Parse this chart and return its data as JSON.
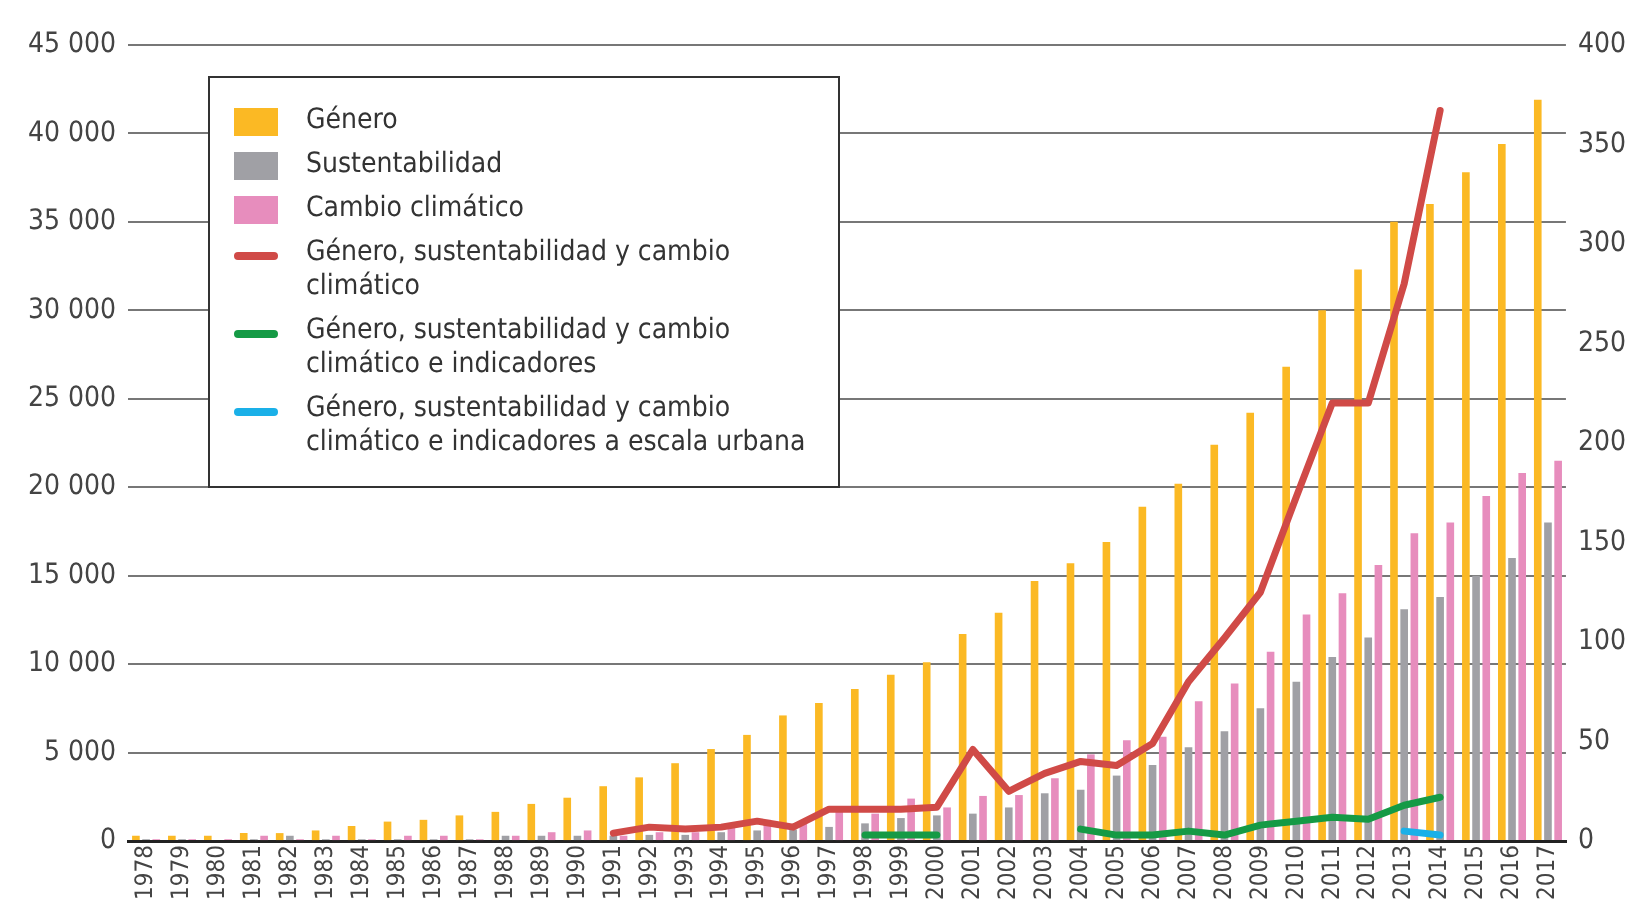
{
  "chart_data": {
    "type": "bar",
    "categories": [
      "1978",
      "1979",
      "1980",
      "1981",
      "1982",
      "1983",
      "1984",
      "1985",
      "1986",
      "1987",
      "1988",
      "1989",
      "1990",
      "1991",
      "1992",
      "1993",
      "1994",
      "1995",
      "1996",
      "1997",
      "1998",
      "1999",
      "2000",
      "2001",
      "2002",
      "2003",
      "2004",
      "2005",
      "2006",
      "2007",
      "2008",
      "2009",
      "2010",
      "2011",
      "2012",
      "2013",
      "2014",
      "2015",
      "2016",
      "2017"
    ],
    "series": [
      {
        "name": "Género",
        "color": "#fbb924",
        "values": [
          300,
          300,
          300,
          450,
          450,
          600,
          850,
          1100,
          1200,
          1450,
          1650,
          2100,
          2450,
          3100,
          3600,
          4400,
          5200,
          6000,
          7100,
          7800,
          8600,
          9400,
          10100,
          11700,
          12900,
          14700,
          15700,
          16900,
          18900,
          20200,
          22400,
          24200,
          26800,
          30000,
          32300,
          35000,
          36000,
          37800,
          39400,
          41900
        ]
      },
      {
        "name": "Sustentabilidad",
        "color": "#a0a0a5",
        "values": [
          100,
          100,
          0,
          100,
          300,
          100,
          100,
          100,
          100,
          100,
          300,
          300,
          300,
          300,
          350,
          350,
          500,
          600,
          650,
          800,
          1000,
          1300,
          1450,
          1550,
          1900,
          2700,
          2900,
          3700,
          4300,
          5300,
          6200,
          7500,
          9000,
          10400,
          11500,
          13100,
          13800,
          15000,
          16000,
          18000
        ]
      },
      {
        "name": "Cambio climático",
        "color": "#e78dbd",
        "values": [
          100,
          100,
          100,
          300,
          100,
          300,
          100,
          300,
          300,
          100,
          300,
          500,
          600,
          300,
          500,
          500,
          800,
          1200,
          1100,
          1800,
          1550,
          2400,
          1900,
          2550,
          2600,
          3550,
          4900,
          5700,
          5900,
          7900,
          8900,
          10700,
          12800,
          14000,
          15600,
          17400,
          18000,
          19500,
          20800,
          21500
        ]
      },
      {
        "name": "Género, sustentabilidad y cambio climático",
        "type": "line",
        "axis": "y2",
        "color": "#d04a47",
        "values": [
          null,
          null,
          null,
          null,
          null,
          null,
          null,
          null,
          null,
          null,
          null,
          null,
          null,
          4,
          7,
          6,
          7,
          10,
          7,
          16,
          16,
          16,
          17,
          46,
          25,
          34,
          40,
          38,
          49,
          80,
          102,
          125,
          173,
          220,
          220,
          280,
          367,
          null,
          null,
          null
        ]
      },
      {
        "name": "Género, sustentabilidad y cambio climático e indicadores",
        "type": "line",
        "axis": "y2",
        "color": "#159a45",
        "values": [
          null,
          null,
          null,
          null,
          null,
          null,
          null,
          null,
          null,
          null,
          null,
          null,
          null,
          null,
          null,
          null,
          null,
          null,
          null,
          null,
          3,
          3,
          3,
          null,
          null,
          null,
          6,
          3,
          3,
          5,
          3,
          8,
          10,
          12,
          11,
          18,
          22,
          null,
          null,
          null
        ]
      },
      {
        "name": "Género, sustentabilidad y cambio climático e indicadores a escala urbana",
        "type": "line",
        "axis": "y2",
        "color": "#1ab0e8",
        "values": [
          null,
          null,
          null,
          null,
          null,
          null,
          null,
          null,
          null,
          null,
          null,
          null,
          null,
          null,
          null,
          null,
          null,
          null,
          null,
          null,
          null,
          null,
          null,
          null,
          null,
          null,
          null,
          null,
          null,
          null,
          null,
          null,
          null,
          null,
          null,
          5,
          3,
          null,
          null,
          null
        ]
      }
    ],
    "ylim": [
      0,
      45000
    ],
    "yticks": [
      0,
      {
        "value": 5000,
        "label": "5 000"
      },
      {
        "value": 10000,
        "label": "10 000"
      },
      {
        "value": 15000,
        "label": "15 000"
      },
      {
        "value": 20000,
        "label": "20 000"
      },
      {
        "value": 25000,
        "label": "25 000"
      },
      {
        "value": 30000,
        "label": "30 000"
      },
      {
        "value": 35000,
        "label": "35 000"
      },
      {
        "value": 40000,
        "label": "40 000"
      },
      {
        "value": 45000,
        "label": "45 000"
      }
    ],
    "y2lim": [
      0,
      400
    ],
    "y2ticks": [
      0,
      50,
      100,
      150,
      200,
      250,
      300,
      350,
      400
    ],
    "grid": "y",
    "legend": "top left"
  }
}
